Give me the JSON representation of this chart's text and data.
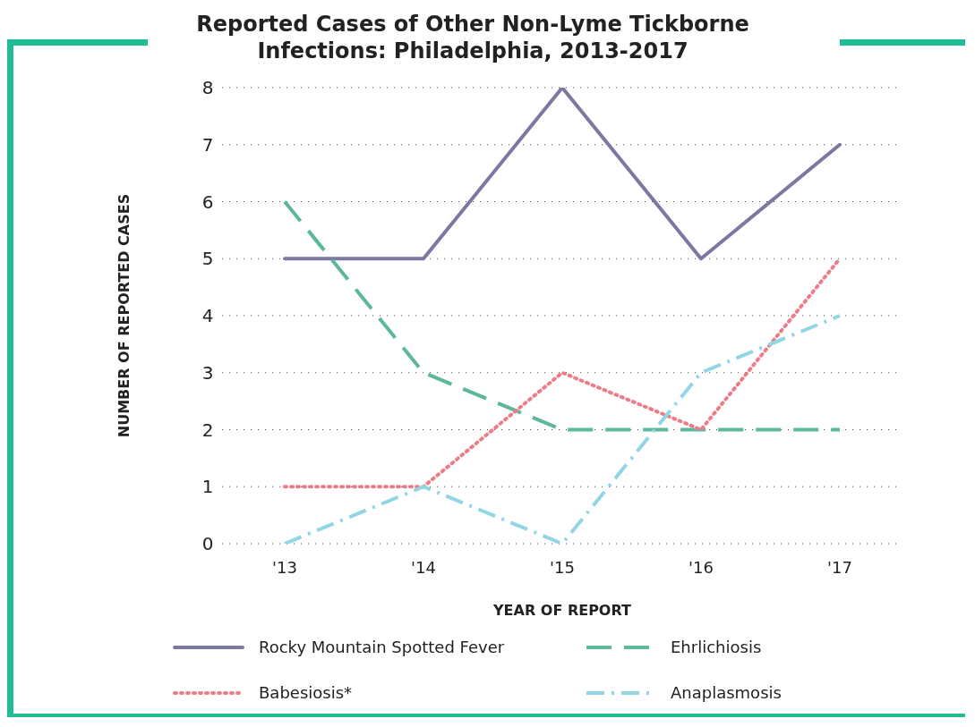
{
  "chart_data": {
    "type": "line",
    "title": "Reported Cases of Other Non-Lyme Tickborne Infections: Philadelphia, 2013-2017",
    "xlabel": "YEAR OF REPORT",
    "ylabel": "NUMBER OF REPORTED CASES",
    "categories": [
      "'13",
      "'14",
      "'15",
      "'16",
      "'17"
    ],
    "series": [
      {
        "name": "Rocky Mountain Spotted Fever",
        "color": "#7b78a2",
        "line_style": "solid",
        "values": [
          5,
          5,
          8,
          5,
          7
        ]
      },
      {
        "name": "Ehrlichiosis",
        "color": "#5cb79b",
        "line_style": "dashed",
        "values": [
          6,
          3,
          2,
          2,
          2
        ]
      },
      {
        "name": "Babesiosis*",
        "color": "#ec7c88",
        "line_style": "dotted",
        "values": [
          1,
          1,
          3,
          2,
          5
        ]
      },
      {
        "name": "Anaplasmosis",
        "color": "#92d6e6",
        "line_style": "dashdot",
        "values": [
          0,
          1,
          0,
          3,
          4
        ]
      }
    ],
    "ylim": [
      0,
      8
    ],
    "yticks": [
      0,
      1,
      2,
      3,
      4,
      5,
      6,
      7,
      8
    ],
    "grid": "y",
    "legend": "bottom",
    "marker": "none"
  }
}
